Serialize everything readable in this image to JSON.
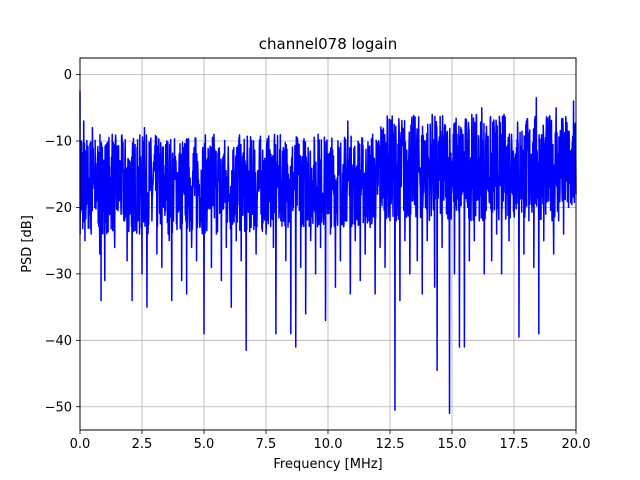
{
  "chart_data": {
    "type": "line",
    "title": "channel078 logain",
    "xlabel": "Frequency [MHz]",
    "ylabel": "PSD [dB]",
    "xlim": [
      0,
      20
    ],
    "ylim": [
      -53.5,
      2.5
    ],
    "xticks": [
      0,
      2.5,
      5,
      7.5,
      10,
      12.5,
      15,
      17.5,
      20
    ],
    "xtick_labels": [
      "0.0",
      "2.5",
      "5.0",
      "7.5",
      "10.0",
      "12.5",
      "15.0",
      "17.5",
      "20.0"
    ],
    "yticks": [
      0,
      -10,
      -20,
      -30,
      -40,
      -50
    ],
    "ytick_labels": [
      "0",
      "−10",
      "−20",
      "−30",
      "−40",
      "−50"
    ],
    "grid": true,
    "legend": "none",
    "series": [
      {
        "color": "#0000ff",
        "points": [
          [
            0.0,
            -2.5
          ],
          [
            0.05,
            -10
          ],
          [
            0.1,
            -16
          ],
          [
            0.15,
            -7
          ],
          [
            0.2,
            -25
          ],
          [
            0.3,
            -12
          ],
          [
            0.4,
            -18
          ],
          [
            0.45,
            -24
          ],
          [
            0.5,
            -8
          ],
          [
            0.6,
            -20
          ],
          [
            0.7,
            -13
          ],
          [
            0.8,
            -27
          ],
          [
            0.85,
            -34
          ],
          [
            0.9,
            -11
          ],
          [
            1.0,
            -31
          ],
          [
            1.1,
            -15
          ],
          [
            1.2,
            -21
          ],
          [
            1.3,
            -9
          ],
          [
            1.4,
            -26
          ],
          [
            1.5,
            -14
          ],
          [
            1.6,
            -19
          ],
          [
            1.7,
            -10
          ],
          [
            1.8,
            -22
          ],
          [
            1.9,
            -28
          ],
          [
            2.0,
            -13
          ],
          [
            2.1,
            -34
          ],
          [
            2.2,
            -17
          ],
          [
            2.3,
            -11
          ],
          [
            2.4,
            -24
          ],
          [
            2.5,
            -30
          ],
          [
            2.6,
            -8
          ],
          [
            2.7,
            -35
          ],
          [
            2.8,
            -16
          ],
          [
            2.9,
            -22
          ],
          [
            3.0,
            -12
          ],
          [
            3.1,
            -27
          ],
          [
            3.2,
            -14
          ],
          [
            3.3,
            -29
          ],
          [
            3.4,
            -19
          ],
          [
            3.5,
            -10
          ],
          [
            3.6,
            -25
          ],
          [
            3.7,
            -34
          ],
          [
            3.8,
            -15
          ],
          [
            3.9,
            -21
          ],
          [
            4.0,
            -12
          ],
          [
            4.1,
            -31
          ],
          [
            4.2,
            -18
          ],
          [
            4.3,
            -33
          ],
          [
            4.4,
            -14
          ],
          [
            4.5,
            -26
          ],
          [
            4.6,
            -11
          ],
          [
            4.7,
            -28
          ],
          [
            4.8,
            -17
          ],
          [
            4.9,
            -22
          ],
          [
            5.0,
            -39
          ],
          [
            5.1,
            -13
          ],
          [
            5.2,
            -20
          ],
          [
            5.3,
            -29
          ],
          [
            5.4,
            -9
          ],
          [
            5.5,
            -24
          ],
          [
            5.6,
            -16
          ],
          [
            5.7,
            -31
          ],
          [
            5.8,
            -12
          ],
          [
            5.9,
            -26
          ],
          [
            6.0,
            -19
          ],
          [
            6.1,
            -35
          ],
          [
            6.2,
            -11
          ],
          [
            6.3,
            -25
          ],
          [
            6.4,
            -14
          ],
          [
            6.5,
            -28
          ],
          [
            6.6,
            -18
          ],
          [
            6.7,
            -41.5
          ],
          [
            6.8,
            -15
          ],
          [
            6.9,
            -23
          ],
          [
            7.0,
            -10
          ],
          [
            7.1,
            -27
          ],
          [
            7.2,
            -17
          ],
          [
            7.3,
            -21
          ],
          [
            7.4,
            -13
          ],
          [
            7.5,
            -24
          ],
          [
            7.6,
            -19
          ],
          [
            7.7,
            -12
          ],
          [
            7.8,
            -26
          ],
          [
            7.9,
            -39
          ],
          [
            8.0,
            -16
          ],
          [
            8.1,
            -22
          ],
          [
            8.2,
            -11
          ],
          [
            8.3,
            -28
          ],
          [
            8.4,
            -15
          ],
          [
            8.5,
            -39
          ],
          [
            8.6,
            -20
          ],
          [
            8.7,
            -41
          ],
          [
            8.8,
            -13
          ],
          [
            8.9,
            -29
          ],
          [
            9.0,
            -18
          ],
          [
            9.1,
            -36
          ],
          [
            9.2,
            -11
          ],
          [
            9.3,
            -25
          ],
          [
            9.4,
            -16
          ],
          [
            9.5,
            -30
          ],
          [
            9.6,
            -9
          ],
          [
            9.7,
            -26
          ],
          [
            9.8,
            -19
          ],
          [
            9.9,
            -37
          ],
          [
            10.0,
            -12
          ],
          [
            10.1,
            -24
          ],
          [
            10.2,
            -17
          ],
          [
            10.3,
            -32
          ],
          [
            10.4,
            -10
          ],
          [
            10.5,
            -28
          ],
          [
            10.6,
            -15
          ],
          [
            10.7,
            -22
          ],
          [
            10.8,
            -7
          ],
          [
            10.9,
            -33
          ],
          [
            11.0,
            -14
          ],
          [
            11.1,
            -25
          ],
          [
            11.2,
            -19
          ],
          [
            11.3,
            -31
          ],
          [
            11.4,
            -11
          ],
          [
            11.5,
            -27
          ],
          [
            11.6,
            -16
          ],
          [
            11.7,
            -23
          ],
          [
            11.8,
            -9
          ],
          [
            11.9,
            -33
          ],
          [
            12.0,
            -18
          ],
          [
            12.1,
            -26
          ],
          [
            12.2,
            -12
          ],
          [
            12.3,
            -29
          ],
          [
            12.4,
            -15
          ],
          [
            12.5,
            -22
          ],
          [
            12.6,
            -10
          ],
          [
            12.7,
            -50.5
          ],
          [
            12.8,
            -17
          ],
          [
            12.9,
            -34
          ],
          [
            13.0,
            -8
          ],
          [
            13.1,
            -25
          ],
          [
            13.2,
            -13
          ],
          [
            13.3,
            -30
          ],
          [
            13.4,
            -19
          ],
          [
            13.5,
            -7
          ],
          [
            13.6,
            -28
          ],
          [
            13.7,
            -14
          ],
          [
            13.8,
            -33
          ],
          [
            13.9,
            -10
          ],
          [
            14.0,
            -25
          ],
          [
            14.1,
            -17
          ],
          [
            14.2,
            -6
          ],
          [
            14.3,
            -32
          ],
          [
            14.4,
            -44.5
          ],
          [
            14.5,
            -12
          ],
          [
            14.6,
            -26
          ],
          [
            14.7,
            -8
          ],
          [
            14.8,
            -21
          ],
          [
            14.9,
            -51
          ],
          [
            15.0,
            -15
          ],
          [
            15.1,
            -30
          ],
          [
            15.2,
            -9
          ],
          [
            15.3,
            -41
          ],
          [
            15.4,
            -18
          ],
          [
            15.5,
            -41
          ],
          [
            15.6,
            -11
          ],
          [
            15.7,
            -28
          ],
          [
            15.8,
            -6
          ],
          [
            15.9,
            -25
          ],
          [
            16.0,
            -14
          ],
          [
            16.1,
            -22
          ],
          [
            16.2,
            -5
          ],
          [
            16.3,
            -30
          ],
          [
            16.4,
            -10
          ],
          [
            16.5,
            -19
          ],
          [
            16.6,
            -28
          ],
          [
            16.7,
            -8
          ],
          [
            16.8,
            -24
          ],
          [
            16.9,
            -13
          ],
          [
            17.0,
            -30
          ],
          [
            17.1,
            -6
          ],
          [
            17.2,
            -18
          ],
          [
            17.3,
            -25
          ],
          [
            17.4,
            -9
          ],
          [
            17.5,
            -21
          ],
          [
            17.6,
            -11
          ],
          [
            17.7,
            -39.5
          ],
          [
            17.8,
            -15
          ],
          [
            17.9,
            -27
          ],
          [
            18.0,
            -7
          ],
          [
            18.1,
            -22
          ],
          [
            18.2,
            -12
          ],
          [
            18.3,
            -29
          ],
          [
            18.4,
            -3.5
          ],
          [
            18.5,
            -39
          ],
          [
            18.6,
            -16
          ],
          [
            18.7,
            -25
          ],
          [
            18.8,
            -8
          ],
          [
            18.9,
            -19
          ],
          [
            19.0,
            -12
          ],
          [
            19.1,
            -27
          ],
          [
            19.2,
            -5
          ],
          [
            19.3,
            -22
          ],
          [
            19.4,
            -14
          ],
          [
            19.5,
            -24
          ],
          [
            19.6,
            -8
          ],
          [
            19.7,
            -20
          ],
          [
            19.8,
            -12
          ],
          [
            19.9,
            -4
          ],
          [
            20.0,
            -18
          ]
        ]
      }
    ]
  }
}
